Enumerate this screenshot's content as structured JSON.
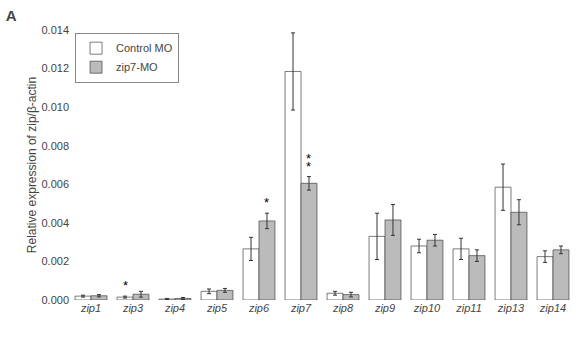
{
  "chart_data": {
    "type": "bar",
    "title": "A",
    "ylabel": "Relative expression of zip/β-actin",
    "categories": [
      "zip1",
      "zip3",
      "zip4",
      "zip5",
      "zip6",
      "zip7",
      "zip8",
      "zip9",
      "zip10",
      "zip11",
      "zip13",
      "zip14"
    ],
    "series": [
      {
        "name": "Control MO",
        "color": "#FFFFFF",
        "values": [
          0.0002,
          0.00015,
          5e-05,
          0.00045,
          0.00265,
          0.01185,
          0.00035,
          0.0033,
          0.0028,
          0.00265,
          0.00585,
          0.00225
        ],
        "errors": [
          5e-05,
          5e-05,
          3e-05,
          0.00012,
          0.0006,
          0.002,
          0.0001,
          0.0012,
          0.00035,
          0.00055,
          0.0012,
          0.0003
        ]
      },
      {
        "name": "zip7-MO",
        "color": "#BBBBBB",
        "values": [
          0.00022,
          0.0003,
          8e-05,
          0.0005,
          0.0041,
          0.00605,
          0.00028,
          0.00415,
          0.0031,
          0.0023,
          0.00455,
          0.0026
        ],
        "errors": [
          6e-05,
          0.00015,
          5e-05,
          0.0001,
          0.0004,
          0.00035,
          0.00012,
          0.0008,
          0.0003,
          0.0003,
          0.00065,
          0.0002
        ]
      }
    ],
    "ylim": [
      0,
      0.014
    ],
    "yticks": [
      {
        "value": 0.0,
        "label": "0.000"
      },
      {
        "value": 0.002,
        "label": "0.002"
      },
      {
        "value": 0.004,
        "label": "0.004"
      },
      {
        "value": 0.006,
        "label": "0.006"
      },
      {
        "value": 0.008,
        "label": "0.008"
      },
      {
        "value": 0.01,
        "label": "0.010"
      },
      {
        "value": 0.012,
        "label": "0.012"
      },
      {
        "value": 0.014,
        "label": "0.014"
      }
    ],
    "grid": false,
    "legend": "upper left",
    "annotations": [
      {
        "text": "*",
        "category": "zip3",
        "series": "Control MO"
      },
      {
        "text": "*",
        "category": "zip6",
        "series": "zip7-MO"
      },
      {
        "text": "*",
        "category": "zip7",
        "series": "zip7-MO"
      },
      {
        "text": "*",
        "category": "zip7",
        "series": "zip7-MO"
      }
    ]
  }
}
